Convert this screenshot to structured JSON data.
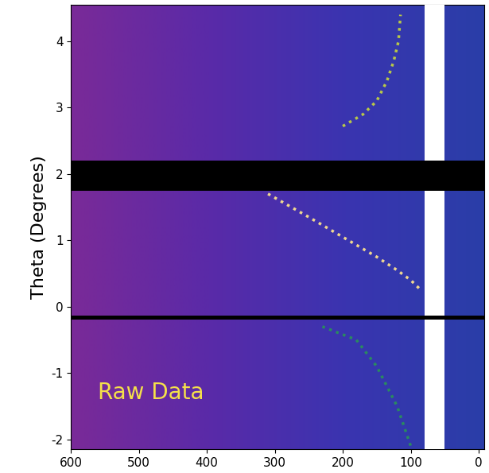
{
  "chart_data": {
    "type": "line",
    "ylabel": "Theta (Degrees)",
    "annotation": {
      "text": "Raw Data",
      "x": 560,
      "y": -1.3,
      "color": "#f5e04a"
    },
    "xlim": [
      600,
      -8
    ],
    "xticks": [
      600,
      500,
      400,
      300,
      200,
      100,
      0
    ],
    "ylim": [
      -2.15,
      4.55
    ],
    "yticks": [
      -2,
      -1,
      0,
      1,
      2,
      3,
      4
    ],
    "grid": false,
    "series": [
      {
        "color": "#f0d890",
        "line_style": "dotted",
        "x": [
          310,
          250,
          200,
          150,
          120,
          100,
          85
        ],
        "values": [
          1.7,
          1.35,
          1.05,
          0.75,
          0.55,
          0.4,
          0.25
        ]
      },
      {
        "color": "#b8c848",
        "line_style": "dotted",
        "x": [
          200,
          170,
          150,
          135,
          125,
          118,
          115
        ],
        "values": [
          2.72,
          2.9,
          3.1,
          3.4,
          3.7,
          4.0,
          4.4
        ]
      },
      {
        "color": "#2a8a60",
        "line_style": "dotted",
        "x": [
          230,
          180,
          150,
          120,
          100
        ],
        "values": [
          -0.3,
          -0.5,
          -0.9,
          -1.5,
          -2.1
        ]
      }
    ],
    "x_bands": [
      {
        "from": 80,
        "to": 50,
        "color": "#ffffff"
      }
    ],
    "y_bands": [
      {
        "from": 1.75,
        "to": 2.2,
        "color": "#000000"
      },
      {
        "from": -0.2,
        "to": -0.13,
        "color": "#000000"
      }
    ]
  }
}
